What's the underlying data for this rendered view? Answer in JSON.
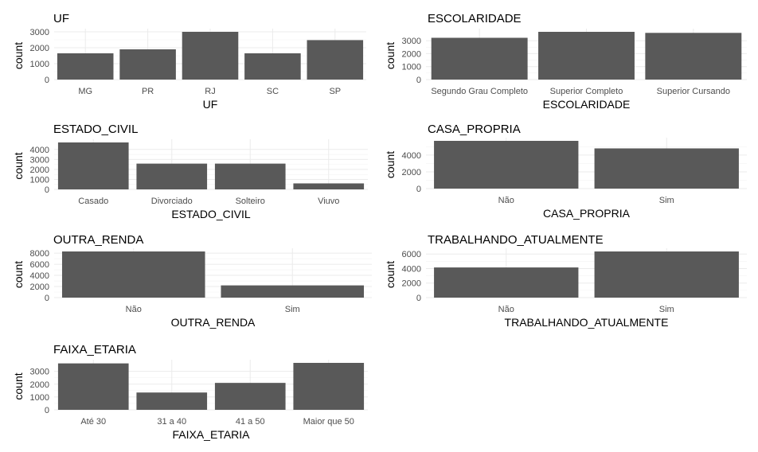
{
  "chart_data": [
    {
      "type": "bar",
      "title": "UF",
      "xlabel": "UF",
      "ylabel": "count",
      "categories": [
        "MG",
        "PR",
        "RJ",
        "SC",
        "SP"
      ],
      "values": [
        1650,
        1900,
        3000,
        1650,
        2480
      ],
      "ylim": [
        0,
        3000
      ],
      "yticks": [
        0,
        1000,
        2000,
        3000
      ],
      "grid": true,
      "bar_color": "#595959"
    },
    {
      "type": "bar",
      "title": "ESCOLARIDADE",
      "xlabel": "ESCOLARIDADE",
      "ylabel": "count",
      "categories": [
        "Segundo Grau Completo",
        "Superior Completo",
        "Superior Cursando"
      ],
      "values": [
        3220,
        3680,
        3600
      ],
      "ylim": [
        0,
        3680
      ],
      "yticks": [
        0,
        1000,
        2000,
        3000
      ],
      "grid": true,
      "bar_color": "#595959"
    },
    {
      "type": "bar",
      "title": "ESTADO_CIVIL",
      "xlabel": "ESTADO_CIVIL",
      "ylabel": "count",
      "categories": [
        "Casado",
        "Divorciado",
        "Solteiro",
        "Viuvo"
      ],
      "values": [
        4700,
        2580,
        2580,
        600
      ],
      "ylim": [
        0,
        4700
      ],
      "yticks": [
        0,
        1000,
        2000,
        3000,
        4000
      ],
      "grid": true,
      "bar_color": "#595959"
    },
    {
      "type": "bar",
      "title": "CASA_PROPRIA",
      "xlabel": "CASA_PROPRIA",
      "ylabel": "count",
      "categories": [
        "Não",
        "Sim"
      ],
      "values": [
        5700,
        4800
      ],
      "ylim": [
        0,
        5700
      ],
      "yticks": [
        0,
        2000,
        4000,
        6000
      ],
      "grid": true,
      "bar_color": "#595959"
    },
    {
      "type": "bar",
      "title": "OUTRA_RENDA",
      "xlabel": "OUTRA_RENDA",
      "ylabel": "count",
      "categories": [
        "Não",
        "Sim"
      ],
      "values": [
        8300,
        2200
      ],
      "ylim": [
        0,
        8300
      ],
      "yticks": [
        0,
        2000,
        4000,
        6000,
        8000
      ],
      "grid": true,
      "bar_color": "#595959"
    },
    {
      "type": "bar",
      "title": "TRABALHANDO_ATUALMENTE",
      "xlabel": "TRABALHANDO_ATUALMENTE",
      "ylabel": "count",
      "categories": [
        "Não",
        "Sim"
      ],
      "values": [
        4150,
        6350
      ],
      "ylim": [
        0,
        6350
      ],
      "yticks": [
        0,
        2000,
        4000,
        6000
      ],
      "grid": true,
      "bar_color": "#595959"
    },
    {
      "type": "bar",
      "title": "FAIXA_ETARIA",
      "xlabel": "FAIXA_ETARIA",
      "ylabel": "count",
      "categories": [
        "Até 30",
        "31 a 40",
        "41 a 50",
        "Maior que 50"
      ],
      "values": [
        3620,
        1350,
        2100,
        3660
      ],
      "ylim": [
        0,
        3660
      ],
      "yticks": [
        0,
        1000,
        2000,
        3000
      ],
      "grid": true,
      "bar_color": "#595959"
    }
  ]
}
